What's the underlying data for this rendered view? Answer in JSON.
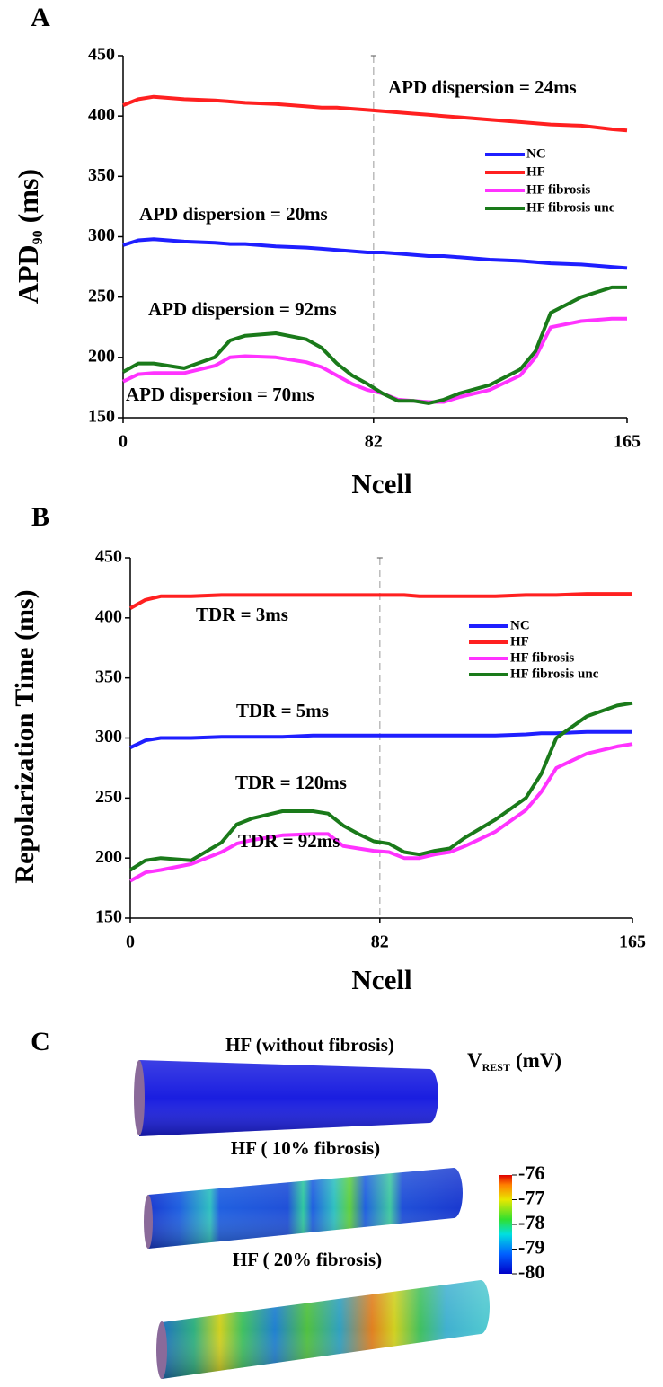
{
  "chart_data": [
    {
      "type": "line",
      "panel": "A",
      "xlabel": "Ncell",
      "ylabel": "APD",
      "ylabel_sub": "90",
      "ylabel_unit": "(ms)",
      "x": [
        0,
        5,
        10,
        20,
        30,
        35,
        40,
        50,
        60,
        65,
        70,
        75,
        80,
        85,
        90,
        95,
        100,
        105,
        110,
        120,
        130,
        135,
        140,
        150,
        160,
        165
      ],
      "xlim": [
        0,
        165
      ],
      "ylim": [
        150,
        450
      ],
      "xticks": [
        0,
        82,
        165
      ],
      "yticks": [
        150,
        200,
        250,
        300,
        350,
        400,
        450
      ],
      "reference_line_x": 82,
      "legend": "right",
      "series": [
        {
          "name": "NC",
          "color": "#1f1fff",
          "values": [
            293,
            297,
            298,
            296,
            295,
            294,
            294,
            292,
            291,
            290,
            289,
            288,
            287,
            287,
            286,
            285,
            284,
            284,
            283,
            281,
            280,
            279,
            278,
            277,
            275,
            274
          ]
        },
        {
          "name": "HF",
          "color": "#ff2020",
          "values": [
            409,
            414,
            416,
            414,
            413,
            412,
            411,
            410,
            408,
            407,
            407,
            406,
            405,
            404,
            403,
            402,
            401,
            400,
            399,
            397,
            395,
            394,
            393,
            392,
            389,
            388
          ]
        },
        {
          "name": "HF fibrosis",
          "color": "#ff33ff",
          "values": [
            180,
            186,
            187,
            187,
            193,
            200,
            201,
            200,
            196,
            192,
            185,
            178,
            173,
            170,
            165,
            164,
            163,
            163,
            167,
            173,
            185,
            200,
            225,
            230,
            232,
            232
          ]
        },
        {
          "name": "HF fibrosis unc",
          "color": "#1a7a1a",
          "values": [
            188,
            195,
            195,
            191,
            200,
            214,
            218,
            220,
            215,
            208,
            195,
            185,
            178,
            170,
            164,
            164,
            162,
            165,
            170,
            177,
            190,
            205,
            237,
            250,
            258,
            258
          ]
        }
      ],
      "annotations": [
        "APD dispersion = 24ms",
        "APD dispersion = 20ms",
        "APD dispersion = 92ms",
        "APD dispersion = 70ms"
      ]
    },
    {
      "type": "line",
      "panel": "B",
      "xlabel": "Ncell",
      "ylabel": "Repolarization Time (ms)",
      "x": [
        0,
        5,
        10,
        20,
        30,
        35,
        40,
        50,
        60,
        65,
        70,
        75,
        80,
        85,
        90,
        95,
        100,
        105,
        110,
        120,
        130,
        135,
        140,
        150,
        160,
        165
      ],
      "xlim": [
        0,
        165
      ],
      "ylim": [
        150,
        450
      ],
      "xticks": [
        0,
        82,
        165
      ],
      "yticks": [
        150,
        200,
        250,
        300,
        350,
        400,
        450
      ],
      "reference_line_x": 82,
      "legend": "right",
      "series": [
        {
          "name": "NC",
          "color": "#1f1fff",
          "values": [
            292,
            298,
            300,
            300,
            301,
            301,
            301,
            301,
            302,
            302,
            302,
            302,
            302,
            302,
            302,
            302,
            302,
            302,
            302,
            302,
            303,
            304,
            304,
            305,
            305,
            305
          ]
        },
        {
          "name": "HF",
          "color": "#ff2020",
          "values": [
            408,
            415,
            418,
            418,
            419,
            419,
            419,
            419,
            419,
            419,
            419,
            419,
            419,
            419,
            419,
            418,
            418,
            418,
            418,
            418,
            419,
            419,
            419,
            420,
            420,
            420
          ]
        },
        {
          "name": "HF fibrosis",
          "color": "#ff33ff",
          "values": [
            181,
            188,
            190,
            195,
            205,
            212,
            215,
            219,
            220,
            220,
            210,
            208,
            206,
            205,
            200,
            200,
            203,
            205,
            210,
            222,
            240,
            255,
            275,
            287,
            293,
            295
          ]
        },
        {
          "name": "HF fibrosis unc",
          "color": "#1a7a1a",
          "values": [
            190,
            198,
            200,
            198,
            213,
            228,
            233,
            239,
            239,
            237,
            227,
            220,
            214,
            212,
            205,
            203,
            206,
            208,
            217,
            232,
            250,
            270,
            300,
            318,
            327,
            329
          ]
        }
      ],
      "annotations": [
        "TDR = 3ms",
        "TDR = 5ms",
        "TDR = 120ms",
        "TDR = 92ms"
      ]
    }
  ],
  "panel_c": {
    "panel": "C",
    "labels": [
      "HF (without fibrosis)",
      "HF ( 10% fibrosis)",
      "HF ( 20% fibrosis)"
    ],
    "colorbar": {
      "title": "V",
      "title_sub": "REST",
      "unit": "(mV)",
      "lim": [
        -80,
        -76
      ],
      "ticks": [
        -80,
        -79,
        -78,
        -77,
        -76
      ]
    }
  }
}
